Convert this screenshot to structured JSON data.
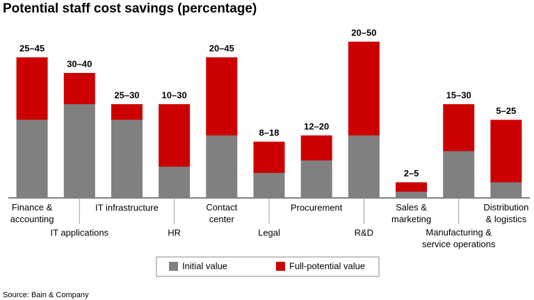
{
  "chart_data": {
    "type": "stacked_bar",
    "title": "Potential staff cost savings (percentage)",
    "categories": [
      "Finance &\naccounting",
      "IT applications",
      "IT infrastructure",
      "HR",
      "Contact\ncenter",
      "Legal",
      "Procurement",
      "R&D",
      "Sales &\nmarketing",
      "Manufacturing &\nservice operations",
      "Distribution\n& logistics"
    ],
    "series": [
      {
        "name": "Initial value",
        "color": "#808080",
        "values": [
          25,
          30,
          25,
          10,
          20,
          8,
          12,
          20,
          2,
          15,
          5
        ]
      },
      {
        "name": "Full-potential value",
        "color": "#cc0000",
        "values": [
          20,
          10,
          5,
          20,
          25,
          10,
          8,
          30,
          3,
          15,
          20
        ]
      }
    ],
    "range_labels": [
      "25–45",
      "30–40",
      "25–30",
      "10–30",
      "20–45",
      "8–18",
      "12–20",
      "20–50",
      "2–5",
      "15–30",
      "5–25"
    ],
    "ylim": [
      0,
      50
    ],
    "source": "Source: Bain & Company"
  }
}
